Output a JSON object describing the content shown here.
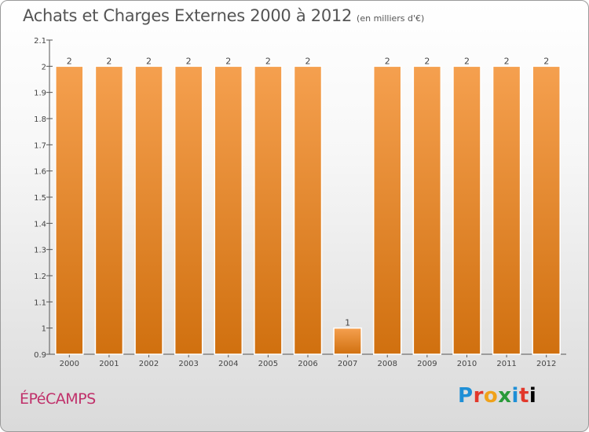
{
  "header": {
    "title": "Achats et Charges Externes 2000 à 2012",
    "subtitle": "(en milliers d'€)"
  },
  "footer": {
    "city": "ÉPéCAMPS",
    "logo_letters": [
      "P",
      "r",
      "o",
      "x",
      "i",
      "t",
      "i"
    ]
  },
  "colors": {
    "bar_top": "#f5a04f",
    "bar_bottom": "#d0700f",
    "city": "#c0306a"
  },
  "chart_data": {
    "type": "bar",
    "categories": [
      "2000",
      "2001",
      "2002",
      "2003",
      "2004",
      "2005",
      "2006",
      "2007",
      "2008",
      "2009",
      "2010",
      "2011",
      "2012"
    ],
    "values": [
      2,
      2,
      2,
      2,
      2,
      2,
      2,
      1,
      2,
      2,
      2,
      2,
      2
    ],
    "data_labels": [
      "2",
      "2",
      "2",
      "2",
      "2",
      "2",
      "2",
      "1",
      "2",
      "2",
      "2",
      "2",
      "2"
    ],
    "ylim": [
      0.9,
      2.1
    ],
    "yticks": [
      0.9,
      1,
      1.1,
      1.2,
      1.3,
      1.4,
      1.5,
      1.6,
      1.7,
      1.8,
      1.9,
      2,
      2.1
    ],
    "ytick_labels": [
      "0.9",
      "1",
      "1.1",
      "1.2",
      "1.3",
      "1.4",
      "1.5",
      "1.6",
      "1.7",
      "1.8",
      "1.9",
      "2",
      "2.1"
    ],
    "grid": false,
    "legend": "none"
  }
}
